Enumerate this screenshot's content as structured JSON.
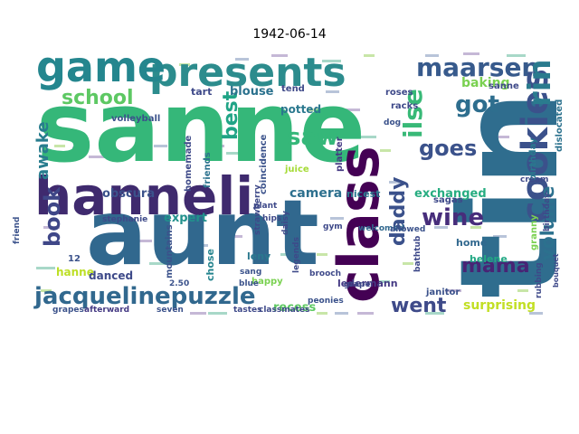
{
  "title": "1942-06-14",
  "words": [
    {
      "text": "sanne",
      "color": "#35b779"
    },
    {
      "text": "aunt",
      "color": "#31688e"
    },
    {
      "text": "tin",
      "color": "#2f6d8e"
    },
    {
      "text": "hanneli",
      "color": "#3f2a6e"
    },
    {
      "text": "presents",
      "color": "#2c8c8d"
    },
    {
      "text": "game",
      "color": "#24868e"
    },
    {
      "text": "class",
      "color": "#440154"
    },
    {
      "text": "cookies",
      "color": "#3b518b"
    },
    {
      "text": "jacquelinepuzzle",
      "color": "#31688e"
    },
    {
      "text": "maarsen",
      "color": "#375a8c"
    },
    {
      "text": "rin",
      "color": "#2a7b8e"
    },
    {
      "text": "school",
      "color": "#5dc863"
    },
    {
      "text": "got",
      "color": "#2e6e8e"
    },
    {
      "text": "ilse",
      "color": "#38b977"
    },
    {
      "text": "saw",
      "color": "#35b779"
    },
    {
      "text": "goes",
      "color": "#3b528b"
    },
    {
      "text": "volume",
      "color": "#2c718e"
    },
    {
      "text": "wine",
      "color": "#472d7b"
    },
    {
      "text": "daddy",
      "color": "#3b518b"
    },
    {
      "text": "mama",
      "color": "#482475"
    },
    {
      "text": "went",
      "color": "#3e4a89"
    },
    {
      "text": "book",
      "color": "#3f4788"
    },
    {
      "text": "best",
      "color": "#20a486"
    },
    {
      "text": "awake",
      "color": "#287d8e"
    },
    {
      "text": "camera",
      "color": "#2d708e"
    },
    {
      "text": "obscura",
      "color": "#3b528b"
    },
    {
      "text": "expert",
      "color": "#21918c"
    },
    {
      "text": "blouse",
      "color": "#2c728e"
    },
    {
      "text": "tart",
      "color": "#3e4989"
    },
    {
      "text": "potted",
      "color": "#2a788e"
    },
    {
      "text": "baking",
      "color": "#7ad151"
    },
    {
      "text": "exchanged",
      "color": "#27ad81"
    },
    {
      "text": "surprising",
      "color": "#c2df23"
    },
    {
      "text": "recess",
      "color": "#5ec962"
    },
    {
      "text": "hanne",
      "color": "#bddf26"
    },
    {
      "text": "volleyball",
      "color": "#3b528b"
    },
    {
      "text": "stephanie",
      "color": "#3e4989"
    },
    {
      "text": "homemade",
      "color": "#3e4a89"
    },
    {
      "text": "friends",
      "color": "#2c728e"
    },
    {
      "text": "coincidence",
      "color": "#3b528b"
    },
    {
      "text": "juice",
      "color": "#a5db36"
    },
    {
      "text": "platter",
      "color": "#443983"
    },
    {
      "text": "tend",
      "color": "#3e4989"
    },
    {
      "text": "birthday",
      "color": "#2a788e"
    },
    {
      "text": "dislocated",
      "color": "#2c728e"
    },
    {
      "text": "danced",
      "color": "#3e4a89"
    },
    {
      "text": "chose",
      "color": "#25848e"
    },
    {
      "text": "leny",
      "color": "#2a788e"
    },
    {
      "text": "sang",
      "color": "#3b528b"
    },
    {
      "text": "ledermann",
      "color": "#443983"
    },
    {
      "text": "home",
      "color": "#31688e"
    },
    {
      "text": "helene",
      "color": "#22a884"
    },
    {
      "text": "peonies",
      "color": "#3b528b"
    },
    {
      "text": "brooch",
      "color": "#3e4989"
    },
    {
      "text": "janitor",
      "color": "#3b528b"
    },
    {
      "text": "grapes",
      "color": "#3b528b"
    },
    {
      "text": "afterward",
      "color": "#443983"
    },
    {
      "text": "seven",
      "color": "#3b528b"
    },
    {
      "text": "tastes",
      "color": "#3e4989"
    },
    {
      "text": "classmates",
      "color": "#3e4989"
    },
    {
      "text": "mountains",
      "color": "#3b528b"
    },
    {
      "text": "strawberry",
      "color": "#3e4989"
    },
    {
      "text": "daisy",
      "color": "#3e4989"
    },
    {
      "text": "nicest",
      "color": "#2a788e"
    },
    {
      "text": "welcomed",
      "color": "#31688e"
    },
    {
      "text": "allowed",
      "color": "#3b528b"
    },
    {
      "text": "sagas",
      "color": "#3e4989"
    },
    {
      "text": "racks",
      "color": "#3e4989"
    },
    {
      "text": "roses",
      "color": "#3e4989"
    },
    {
      "text": "cream",
      "color": "#3e4989"
    },
    {
      "text": "grape",
      "color": "#3e4989"
    },
    {
      "text": "friend",
      "color": "#3b528b"
    },
    {
      "text": "happy",
      "color": "#7ad151"
    },
    {
      "text": "2.50",
      "color": "#3b528b"
    },
    {
      "text": "12",
      "color": "#3b528b"
    },
    {
      "text": "blue",
      "color": "#3b528b"
    },
    {
      "text": "plant",
      "color": "#3e4989"
    },
    {
      "text": "hips",
      "color": "#3e4989"
    },
    {
      "text": "gym",
      "color": "#3e4989"
    },
    {
      "text": "legends",
      "color": "#3e4989"
    },
    {
      "text": "dog",
      "color": "#3b528b"
    },
    {
      "text": "bathtub",
      "color": "#3e4989"
    },
    {
      "text": "rubbing",
      "color": "#3e4989"
    },
    {
      "text": "granny",
      "color": "#7ad151"
    },
    {
      "text": "bouquet",
      "color": "#3e4989"
    },
    {
      "text": "birthday",
      "color": "#3e4989"
    },
    {
      "text": "sanne",
      "color": "#3e4989"
    }
  ]
}
